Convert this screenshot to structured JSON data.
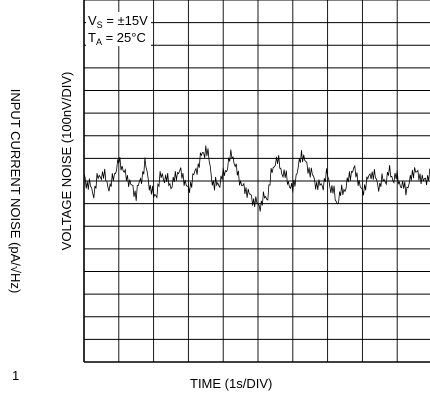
{
  "chart_data": {
    "type": "line",
    "title": "",
    "xlabel": "TIME (1s/DIV)",
    "ylabel": "VOLTAGE NOISE (100nV/DIV)",
    "secondary_label": "INPUT CURRENT NOISE (pA/√Hz)",
    "conditions": [
      {
        "symbol": "V",
        "subscript": "S",
        "value": "= ±15V"
      },
      {
        "symbol": "T",
        "subscript": "A",
        "value": "= 25°C"
      }
    ],
    "grid": true,
    "x_divisions": 10,
    "y_divisions": 16,
    "xlim_div": [
      0,
      10
    ],
    "ylim_div": [
      -8,
      8
    ],
    "baseline_div": 0,
    "series": [
      {
        "x_div": [
          0.0,
          0.25,
          0.5,
          0.75,
          1.0,
          1.25,
          1.5,
          1.75,
          2.0,
          2.25,
          2.5,
          2.75,
          3.0,
          3.25,
          3.5,
          3.75,
          4.0,
          4.25,
          4.5,
          4.75,
          5.0,
          5.25,
          5.5,
          5.75,
          6.0,
          6.25,
          6.5,
          6.75,
          7.0,
          7.25,
          7.5,
          7.75,
          8.0,
          8.25,
          8.5,
          8.75,
          9.0,
          9.25,
          9.5,
          9.75,
          10.0
        ],
        "y_div": [
          0.2,
          -0.5,
          0.4,
          -0.3,
          0.9,
          0.1,
          -0.6,
          0.7,
          -0.8,
          0.3,
          -0.2,
          0.5,
          -0.4,
          0.6,
          1.5,
          -0.3,
          0.2,
          1.2,
          -0.1,
          -0.6,
          -1.1,
          -0.7,
          1.0,
          0.3,
          -0.4,
          1.2,
          0.4,
          -0.3,
          0.2,
          -0.9,
          -0.3,
          0.6,
          -0.5,
          0.4,
          -0.2,
          0.3,
          0.1,
          -0.4,
          0.5,
          0.0,
          0.3
        ]
      }
    ]
  },
  "page_fragment": {
    "text": "1"
  }
}
